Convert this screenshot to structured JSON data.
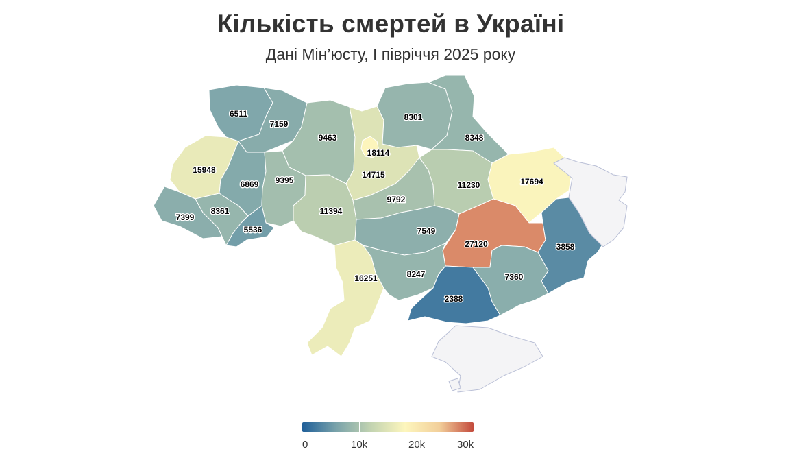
{
  "header": {
    "title": "Кількість смертей в Україні",
    "subtitle": "Дані Мін’юсту, І півріччя 2025 року"
  },
  "legend": {
    "min": 0,
    "max": 30000,
    "ticks": [
      {
        "value": 0,
        "label": "0"
      },
      {
        "value": 10000,
        "label": "10k"
      },
      {
        "value": 20000,
        "label": "20k"
      },
      {
        "value": 30000,
        "label": "30k"
      }
    ],
    "colors": [
      "#1f5f99",
      "#7aa3aa",
      "#c2d3b1",
      "#fdf6bd",
      "#f2cf9a",
      "#c34a3c"
    ]
  },
  "no_data_color": "#f4f4f6",
  "regions": [
    {
      "id": "volyn",
      "value": 6511
    },
    {
      "id": "rivne",
      "value": 7159
    },
    {
      "id": "zhytomyr",
      "value": 9463
    },
    {
      "id": "kyiv-oblast",
      "value": 14715
    },
    {
      "id": "kyiv-city",
      "value": 18114
    },
    {
      "id": "chernihiv",
      "value": 8301
    },
    {
      "id": "sumy",
      "value": 8348
    },
    {
      "id": "lviv",
      "value": 15948
    },
    {
      "id": "ternopil",
      "value": 6869
    },
    {
      "id": "khmelnytskyi",
      "value": 9395
    },
    {
      "id": "vinnytsia",
      "value": 11394
    },
    {
      "id": "cherkasy",
      "value": 9792
    },
    {
      "id": "poltava",
      "value": 11230
    },
    {
      "id": "kharkiv",
      "value": 17694
    },
    {
      "id": "zakarpattia",
      "value": 7399
    },
    {
      "id": "ivano-frankivsk",
      "value": 8361
    },
    {
      "id": "chernivtsi",
      "value": 5536
    },
    {
      "id": "kirovohrad",
      "value": 7549
    },
    {
      "id": "dnipropetrovsk",
      "value": 27120
    },
    {
      "id": "donetsk",
      "value": 3858
    },
    {
      "id": "luhansk",
      "value": null
    },
    {
      "id": "odesa",
      "value": 16251
    },
    {
      "id": "mykolaiv",
      "value": 8247
    },
    {
      "id": "zaporizhzhia",
      "value": 7360
    },
    {
      "id": "kherson",
      "value": 2388
    },
    {
      "id": "crimea",
      "value": null
    },
    {
      "id": "sevastopol",
      "value": null
    }
  ]
}
